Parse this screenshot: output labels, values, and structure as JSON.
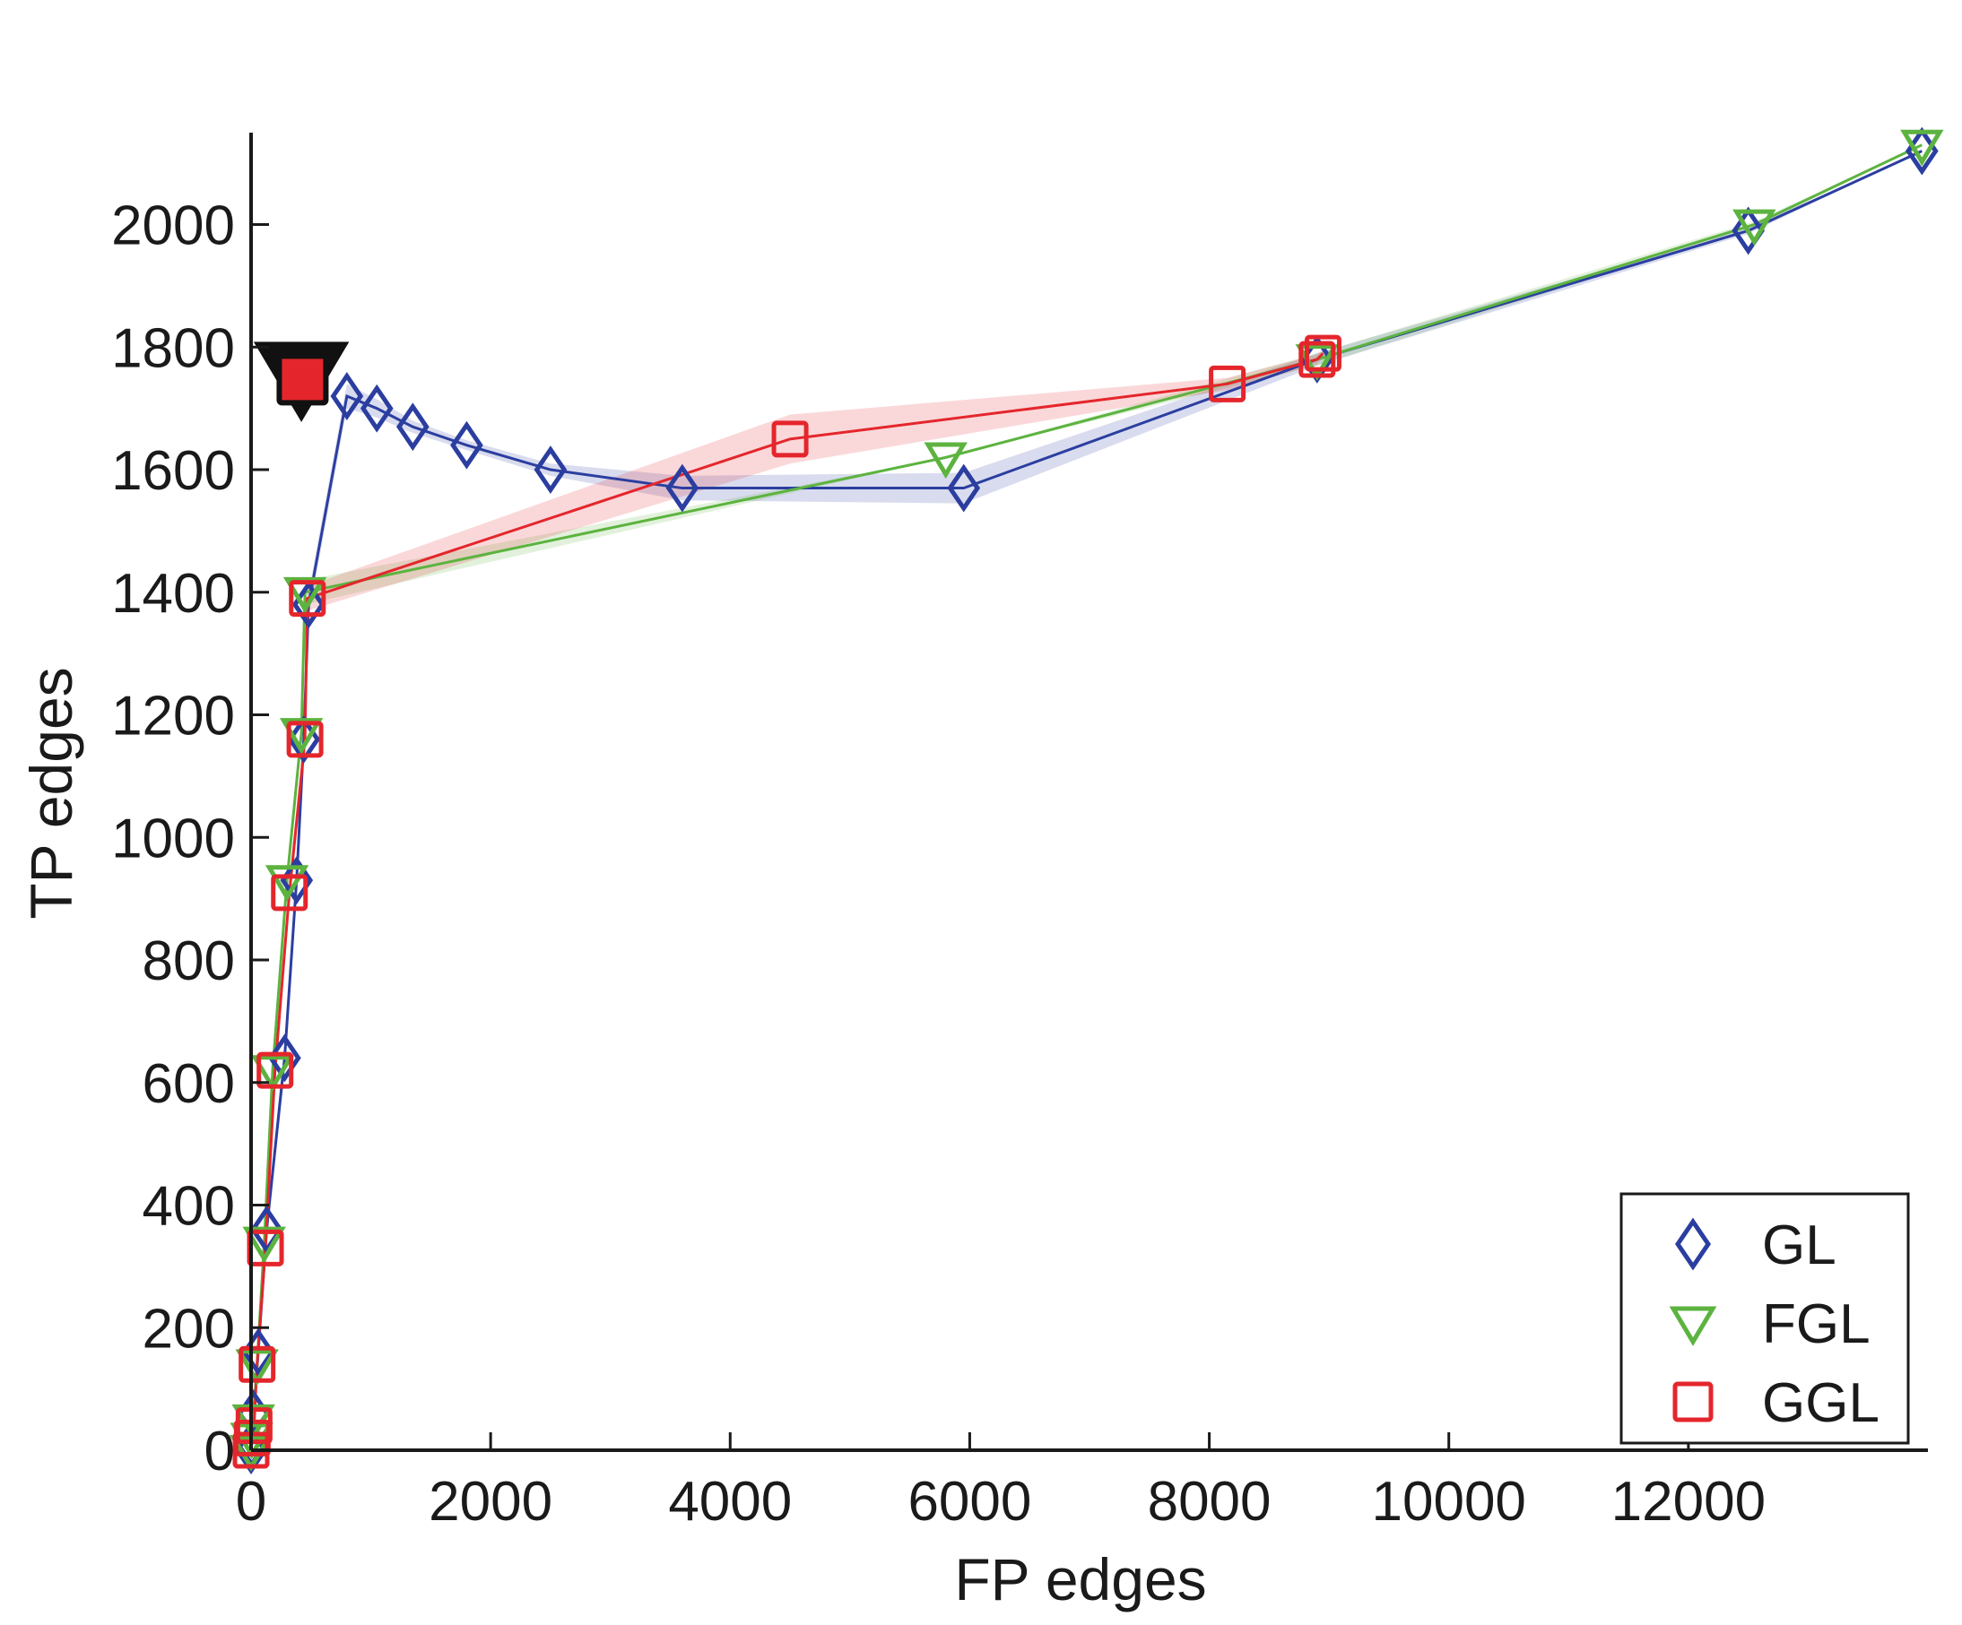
{
  "chart_data": {
    "type": "line",
    "xlabel": "FP edges",
    "ylabel": "TP edges",
    "xlim": [
      0,
      14000
    ],
    "ylim": [
      0,
      2150
    ],
    "xticks": [
      0,
      2000,
      4000,
      6000,
      8000,
      10000,
      12000
    ],
    "yticks": [
      0,
      200,
      400,
      600,
      800,
      1000,
      1200,
      1400,
      1600,
      1800,
      2000
    ],
    "legend_position": "bottom-right",
    "series": [
      {
        "name": "GL",
        "color": "#2b3ea0",
        "marker": "diamond",
        "x": [
          0,
          5,
          20,
          60,
          130,
          280,
          380,
          440,
          480,
          800,
          1050,
          1350,
          1800,
          2500,
          3600,
          5950,
          8900,
          12500,
          13950
        ],
        "y": [
          0,
          10,
          60,
          160,
          360,
          640,
          930,
          1160,
          1380,
          1720,
          1700,
          1670,
          1640,
          1600,
          1570,
          1570,
          1780,
          1990,
          2120
        ],
        "band_width": [
          0,
          5,
          10,
          15,
          20,
          25,
          25,
          20,
          20,
          20,
          15,
          10,
          8,
          10,
          20,
          25,
          10,
          5,
          0
        ]
      },
      {
        "name": "FGL",
        "color": "#5cb33f",
        "marker": "triangle-down",
        "x": [
          0,
          5,
          20,
          50,
          110,
          180,
          300,
          420,
          450,
          5800,
          8900,
          12550,
          13950
        ],
        "y": [
          0,
          20,
          50,
          140,
          340,
          620,
          930,
          1170,
          1400,
          1620,
          1780,
          2000,
          2130
        ],
        "band_width": [
          0,
          5,
          10,
          15,
          20,
          25,
          25,
          20,
          20,
          0,
          10,
          5,
          0
        ]
      },
      {
        "name": "GGL",
        "color": "#e4262c",
        "marker": "square",
        "x": [
          0,
          10,
          25,
          50,
          120,
          200,
          320,
          450,
          470,
          4500,
          8150,
          8900,
          8950
        ],
        "y": [
          0,
          20,
          40,
          140,
          330,
          620,
          910,
          1160,
          1390,
          1650,
          1740,
          1780,
          1790
        ],
        "band_width": [
          0,
          5,
          10,
          15,
          20,
          25,
          25,
          20,
          20,
          40,
          10,
          8,
          6
        ]
      }
    ],
    "highlight_points": [
      {
        "series": "FGL",
        "x": 420,
        "y": 1760,
        "marker": "triangle-down",
        "color": "#111111"
      },
      {
        "series": "GGL",
        "x": 430,
        "y": 1740,
        "marker": "square",
        "color": "#e4262c"
      }
    ]
  }
}
